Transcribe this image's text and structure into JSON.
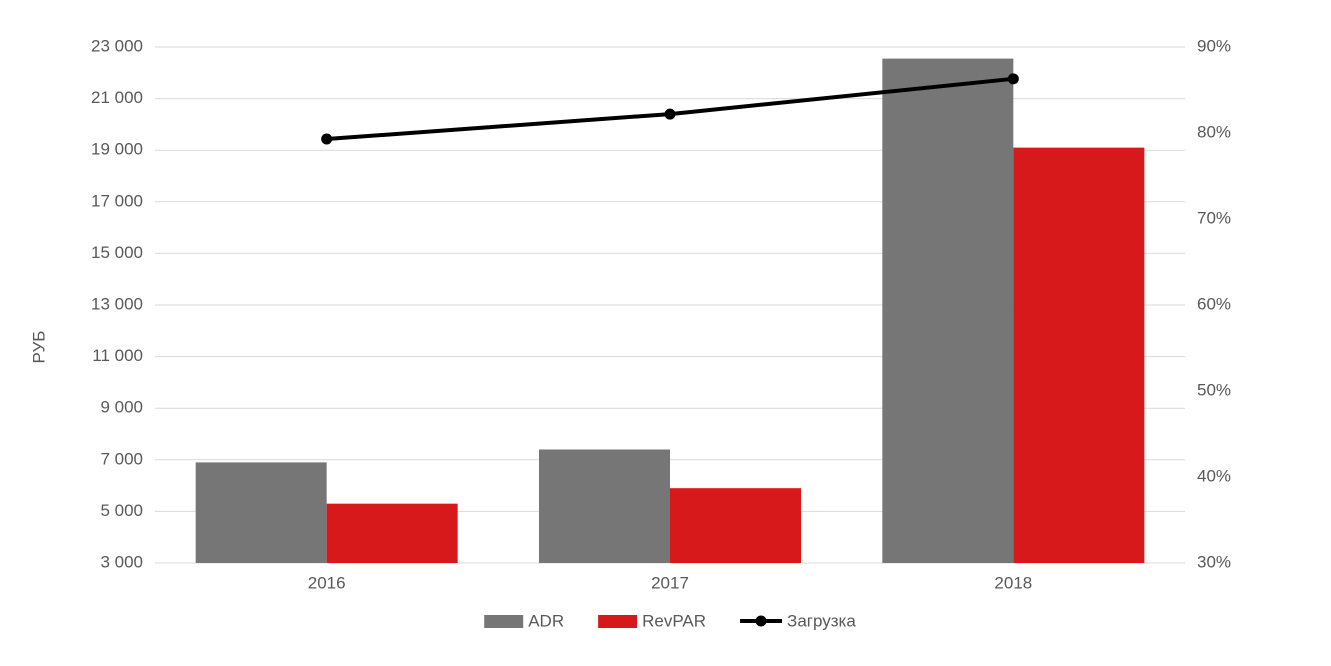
{
  "chart_data": {
    "type": "bar",
    "y_label": "РУБ",
    "categories": [
      "2016",
      "2017",
      "2018"
    ],
    "series": [
      {
        "name": "ADR",
        "color": "#767676",
        "values": [
          6900,
          7400,
          22550
        ]
      },
      {
        "name": "RevPAR",
        "color": "#d7191c",
        "values": [
          5300,
          5900,
          19100
        ]
      },
      {
        "name": "Загрузка",
        "color": "#000000",
        "type": "line",
        "axis": "y2",
        "values": [
          79.3,
          82.2,
          86.3
        ]
      }
    ],
    "ylim": [
      3000,
      23000
    ],
    "yticks": [
      {
        "value": 3000,
        "label": "3 000"
      },
      {
        "value": 5000,
        "label": "5 000"
      },
      {
        "value": 7000,
        "label": "7 000"
      },
      {
        "value": 9000,
        "label": "9 000"
      },
      {
        "value": 11000,
        "label": "11 000"
      },
      {
        "value": 13000,
        "label": "13 000"
      },
      {
        "value": 15000,
        "label": "15 000"
      },
      {
        "value": 17000,
        "label": "17 000"
      },
      {
        "value": 19000,
        "label": "19 000"
      },
      {
        "value": 21000,
        "label": "21 000"
      },
      {
        "value": 23000,
        "label": "23 000"
      }
    ],
    "y2lim": [
      30,
      90
    ],
    "y2ticks": [
      {
        "value": 30,
        "label": "30%"
      },
      {
        "value": 40,
        "label": "40%"
      },
      {
        "value": 50,
        "label": "50%"
      },
      {
        "value": 60,
        "label": "60%"
      },
      {
        "value": 70,
        "label": "70%"
      },
      {
        "value": 80,
        "label": "80%"
      },
      {
        "value": 90,
        "label": "90%"
      }
    ],
    "grid": true,
    "legend": "bottom"
  }
}
